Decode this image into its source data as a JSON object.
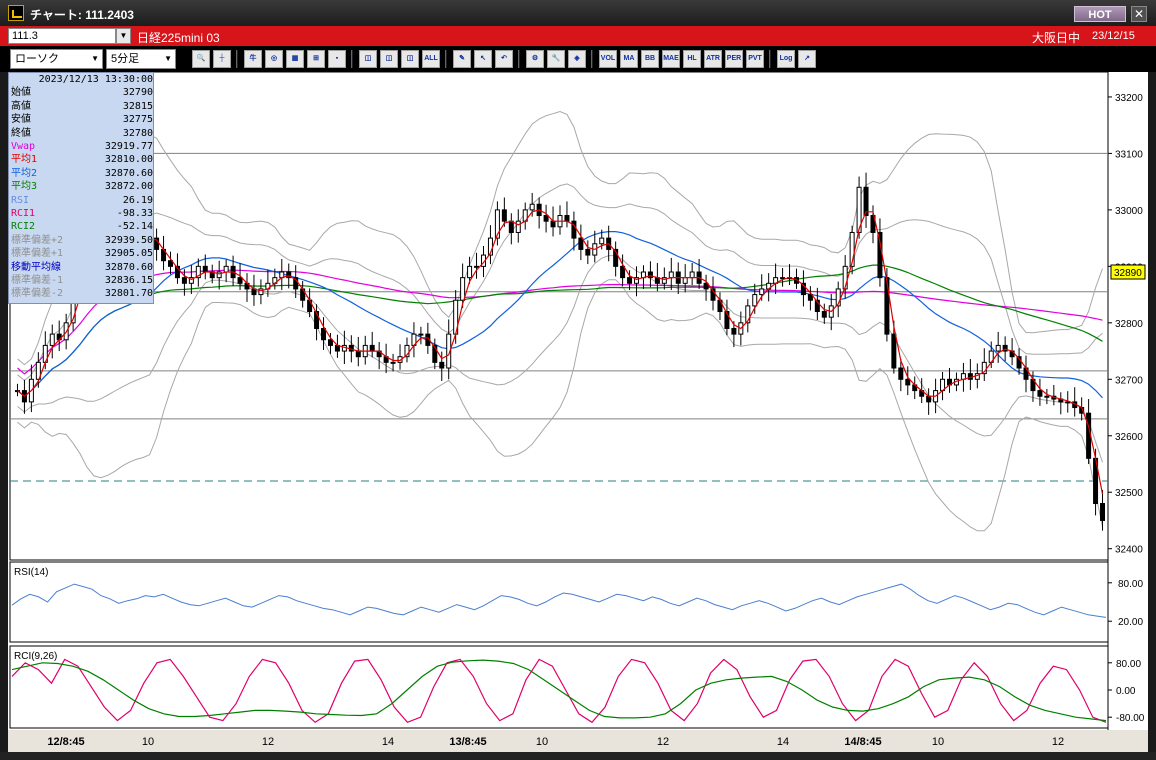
{
  "window": {
    "title": "チャート: 111.2403",
    "hot_label": "HOT",
    "close_label": "✕"
  },
  "symbol": {
    "code": "111.3",
    "instrument": "日経225mini 03",
    "market": "大阪日中",
    "date": "23/12/15"
  },
  "toolbar": {
    "chart_type": "ローソク",
    "interval": "5分足",
    "buttons": [
      {
        "name": "zoom-icon",
        "label": "🔍"
      },
      {
        "name": "crosshair-icon",
        "label": "┼"
      },
      {
        "name": "bull-icon",
        "label": "牛"
      },
      {
        "name": "magnify-icon",
        "label": "◎"
      },
      {
        "name": "grid-icon",
        "label": "▦"
      },
      {
        "name": "bars-icon",
        "label": "⊞"
      },
      {
        "name": "gray-icon",
        "label": "▪"
      },
      {
        "name": "candle1-icon",
        "label": "◫"
      },
      {
        "name": "candle2-icon",
        "label": "◫"
      },
      {
        "name": "candle3-icon",
        "label": "◫"
      },
      {
        "name": "all-icon",
        "label": "ALL"
      },
      {
        "name": "pen-icon",
        "label": "✎"
      },
      {
        "name": "cursor-icon",
        "label": "↖"
      },
      {
        "name": "undo-icon",
        "label": "↶"
      },
      {
        "name": "settings-icon",
        "label": "⚙"
      },
      {
        "name": "wrench-icon",
        "label": "🔧"
      },
      {
        "name": "color-icon",
        "label": "◈"
      },
      {
        "name": "volume-icon",
        "label": "VOL"
      },
      {
        "name": "ma-icon",
        "label": "MA"
      },
      {
        "name": "bb-icon",
        "label": "BB"
      },
      {
        "name": "mae-icon",
        "label": "MAE"
      },
      {
        "name": "hl-icon",
        "label": "HL"
      },
      {
        "name": "atr-icon",
        "label": "ATR"
      },
      {
        "name": "pnf-icon",
        "label": "PER"
      },
      {
        "name": "pvt-icon",
        "label": "PVT"
      },
      {
        "name": "log-icon",
        "label": "Log"
      },
      {
        "name": "export-icon",
        "label": "↗"
      }
    ]
  },
  "info": {
    "datetime": "2023/12/13  13:30:00",
    "rows": [
      {
        "label": "始値",
        "value": "32790",
        "color": "#000000"
      },
      {
        "label": "高値",
        "value": "32815",
        "color": "#000000"
      },
      {
        "label": "安値",
        "value": "32775",
        "color": "#000000"
      },
      {
        "label": "終値",
        "value": "32780",
        "color": "#000000"
      },
      {
        "label": "Vwap",
        "value": "32919.77",
        "color": "#e000e0"
      },
      {
        "label": "平均1",
        "value": "32810.00",
        "color": "#e00000"
      },
      {
        "label": "平均2",
        "value": "32870.60",
        "color": "#1060e0"
      },
      {
        "label": "平均3",
        "value": "32872.00",
        "color": "#008000"
      },
      {
        "label": "RSI",
        "value": "26.19",
        "color": "#6090e0"
      },
      {
        "label": "RCI1",
        "value": "-98.33",
        "color": "#e0006a"
      },
      {
        "label": "RCI2",
        "value": "-52.14",
        "color": "#008000"
      },
      {
        "label": "標準偏差+2",
        "value": "32939.50",
        "color": "#909090"
      },
      {
        "label": "標準偏差+1",
        "value": "32905.05",
        "color": "#909090"
      },
      {
        "label": "移動平均線",
        "value": "32870.60",
        "color": "#0000c0"
      },
      {
        "label": "標準偏差-1",
        "value": "32836.15",
        "color": "#909090"
      },
      {
        "label": "標準偏差-2",
        "value": "32801.70",
        "color": "#909090"
      }
    ]
  },
  "chart_data": [
    {
      "type": "candlestick",
      "title": "",
      "y_ticks": [
        "33200",
        "33100",
        "33000",
        "32900",
        "32800",
        "32700",
        "32600",
        "32500",
        "32400"
      ],
      "ylim": [
        32380,
        33230
      ],
      "current_price_label": "32890",
      "horizontal_lines": [
        33100,
        32855,
        32715,
        32630
      ],
      "dashed_line": 32520,
      "x_ticks": [
        "12/8:45",
        "10",
        "12",
        "14",
        "13/8:45",
        "10",
        "12",
        "14",
        "14/8:45",
        "10",
        "12"
      ],
      "close_series": [
        32680,
        32660,
        32700,
        32730,
        32760,
        32780,
        32770,
        32800,
        32850,
        32890,
        32940,
        32960,
        32950,
        32930,
        32920,
        32900,
        32920,
        32940,
        32960,
        32950,
        32930,
        32910,
        32900,
        32880,
        32870,
        32880,
        32900,
        32890,
        32880,
        32890,
        32900,
        32880,
        32870,
        32860,
        32850,
        32860,
        32870,
        32880,
        32890,
        32880,
        32860,
        32840,
        32820,
        32790,
        32770,
        32760,
        32750,
        32760,
        32750,
        32740,
        32760,
        32750,
        32740,
        32730,
        32730,
        32740,
        32760,
        32780,
        32780,
        32760,
        32730,
        32720,
        32780,
        32840,
        32880,
        32900,
        32900,
        32920,
        32950,
        33000,
        32980,
        32960,
        32980,
        33000,
        33010,
        32990,
        32980,
        32970,
        32990,
        32980,
        32950,
        32930,
        32920,
        32940,
        32950,
        32930,
        32900,
        32880,
        32870,
        32880,
        32890,
        32880,
        32870,
        32880,
        32890,
        32870,
        32880,
        32890,
        32870,
        32860,
        32840,
        32820,
        32790,
        32780,
        32800,
        32830,
        32850,
        32860,
        32870,
        32880,
        32880,
        32880,
        32870,
        32850,
        32840,
        32820,
        32810,
        32830,
        32860,
        32900,
        32960,
        33040,
        32990,
        32960,
        32880,
        32780,
        32720,
        32700,
        32690,
        32680,
        32670,
        32660,
        32680,
        32700,
        32690,
        32700,
        32710,
        32700,
        32710,
        32730,
        32750,
        32760,
        32750,
        32740,
        32720,
        32700,
        32680,
        32670,
        32670,
        32665,
        32660,
        32660,
        32650,
        32640,
        32560,
        32480,
        32450
      ],
      "ma_series": [
        {
          "name": "平均1",
          "color": "#e00000"
        },
        {
          "name": "平均2",
          "color": "#1060e0"
        },
        {
          "name": "平均3",
          "color": "#008000"
        },
        {
          "name": "Vwap",
          "color": "#e000e0"
        },
        {
          "name": "標準偏差",
          "color": "#a0a0a0"
        }
      ]
    },
    {
      "type": "line",
      "title": "RSI(14)",
      "y_ticks": [
        "80.00",
        "20.00"
      ],
      "ylim": [
        0,
        100
      ],
      "series": [
        {
          "name": "RSI",
          "color": "#4a7fd0",
          "values": [
            45,
            55,
            62,
            58,
            50,
            66,
            72,
            78,
            74,
            70,
            60,
            55,
            48,
            52,
            55,
            60,
            58,
            62,
            56,
            50,
            46,
            44,
            48,
            52,
            56,
            50,
            44,
            42,
            48,
            54,
            60,
            58,
            52,
            48,
            44,
            40,
            38,
            34,
            30,
            36,
            42,
            40,
            36,
            32,
            30,
            36,
            42,
            38,
            34,
            40,
            46,
            42,
            38,
            44,
            52,
            60,
            58,
            54,
            48,
            44,
            50,
            58,
            64,
            62,
            58,
            54,
            50,
            56,
            62,
            60,
            56,
            52,
            58,
            54,
            48,
            44,
            50,
            56,
            52,
            46,
            42,
            38,
            44,
            48,
            52,
            48,
            42,
            36,
            40,
            46,
            52,
            56,
            50,
            46,
            52,
            58,
            62,
            66,
            70,
            74,
            78,
            70,
            60,
            52,
            48,
            54,
            60,
            56,
            50,
            44,
            38,
            42,
            48,
            46,
            40,
            34,
            30,
            36,
            42,
            38,
            34,
            30,
            28,
            26
          ]
        }
      ]
    },
    {
      "type": "line",
      "title": "RCI(9,26)",
      "y_ticks": [
        "80.00",
        "0.00",
        "-80.00"
      ],
      "ylim": [
        -100,
        100
      ],
      "series": [
        {
          "name": "RCI1",
          "color": "#e0006a",
          "values": [
            40,
            80,
            60,
            20,
            90,
            70,
            10,
            -50,
            -90,
            -60,
            20,
            80,
            90,
            40,
            -20,
            -80,
            -90,
            -40,
            40,
            90,
            80,
            20,
            -60,
            -95,
            -70,
            20,
            85,
            90,
            30,
            -50,
            -95,
            -80,
            10,
            80,
            90,
            40,
            -40,
            -90,
            -70,
            30,
            90,
            70,
            0,
            -70,
            -95,
            -50,
            40,
            90,
            80,
            20,
            -60,
            -90,
            -40,
            50,
            90,
            60,
            -20,
            -80,
            -60,
            30,
            85,
            90,
            40,
            -40,
            -90,
            -60,
            40,
            90,
            70,
            -10,
            -80,
            -60,
            30,
            80,
            40,
            -40,
            -90,
            -60,
            20,
            70,
            60,
            0,
            -80,
            -95
          ]
        },
        {
          "name": "RCI2",
          "color": "#008000",
          "values": [
            60,
            70,
            80,
            78,
            70,
            55,
            30,
            0,
            -30,
            -55,
            -70,
            -78,
            -78,
            -75,
            -70,
            -65,
            -60,
            -60,
            -62,
            -65,
            -70,
            -72,
            -74,
            -75,
            -70,
            -40,
            0,
            40,
            70,
            82,
            86,
            88,
            85,
            78,
            60,
            30,
            0,
            -30,
            -60,
            -78,
            -82,
            -82,
            -80,
            -70,
            -40,
            0,
            20,
            30,
            35,
            38,
            40,
            25,
            0,
            -30,
            -50,
            -60,
            -62,
            -55,
            -40,
            -20,
            10,
            30,
            35,
            38,
            30,
            10,
            -20,
            -45,
            -60,
            -70,
            -80,
            -85,
            -90
          ]
        }
      ]
    }
  ]
}
